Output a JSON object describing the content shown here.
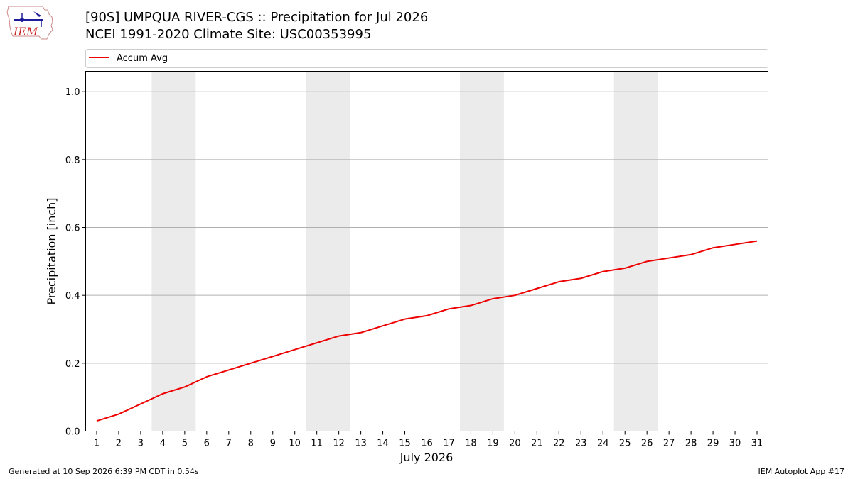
{
  "header": {
    "title_line1": "[90S] UMPQUA RIVER-CGS :: Precipitation for Jul 2026",
    "title_line2": "NCEI 1991-2020 Climate Site: USC00353995",
    "logo_text": "IEM"
  },
  "footer": {
    "generated": "Generated at 10 Sep 2026 6:39 PM CDT in 0.54s",
    "app": "IEM Autoplot App #17"
  },
  "colors": {
    "series": "#ee0000",
    "weekend_band": "#ebebeb",
    "grid": "#b0b0b0",
    "logo_blue": "#1d1d9a",
    "logo_red": "#cc2222"
  },
  "chart_data": {
    "type": "line",
    "title": "[90S] UMPQUA RIVER-CGS :: Precipitation for Jul 2026",
    "subtitle": "NCEI 1991-2020 Climate Site: USC00353995",
    "xlabel": "July 2026",
    "ylabel": "Precipitation [inch]",
    "x": [
      1,
      2,
      3,
      4,
      5,
      6,
      7,
      8,
      9,
      10,
      11,
      12,
      13,
      14,
      15,
      16,
      17,
      18,
      19,
      20,
      21,
      22,
      23,
      24,
      25,
      26,
      27,
      28,
      29,
      30,
      31
    ],
    "x_tick_labels": [
      "1",
      "2",
      "3",
      "4",
      "5",
      "6",
      "7",
      "8",
      "9",
      "10",
      "11",
      "12",
      "13",
      "14",
      "15",
      "16",
      "17",
      "18",
      "19",
      "20",
      "21",
      "22",
      "23",
      "24",
      "25",
      "26",
      "27",
      "28",
      "29",
      "30",
      "31"
    ],
    "xlim": [
      0.5,
      31.5
    ],
    "ylim": [
      0,
      1.06
    ],
    "y_ticks": [
      0.0,
      0.2,
      0.4,
      0.6,
      0.8,
      1.0
    ],
    "y_tick_labels": [
      "0.0",
      "0.2",
      "0.4",
      "0.6",
      "0.8",
      "1.0"
    ],
    "grid": "horizontal",
    "legend_position": "top",
    "shaded_weekends": [
      [
        4,
        5
      ],
      [
        11,
        12
      ],
      [
        18,
        19
      ],
      [
        25,
        26
      ]
    ],
    "series": [
      {
        "name": "Accum Avg",
        "color": "#ee0000",
        "values": [
          0.03,
          0.05,
          0.08,
          0.11,
          0.13,
          0.16,
          0.18,
          0.2,
          0.22,
          0.24,
          0.26,
          0.28,
          0.29,
          0.31,
          0.33,
          0.34,
          0.36,
          0.37,
          0.39,
          0.4,
          0.42,
          0.44,
          0.45,
          0.47,
          0.48,
          0.5,
          0.51,
          0.52,
          0.54,
          0.55,
          0.56
        ]
      }
    ]
  }
}
